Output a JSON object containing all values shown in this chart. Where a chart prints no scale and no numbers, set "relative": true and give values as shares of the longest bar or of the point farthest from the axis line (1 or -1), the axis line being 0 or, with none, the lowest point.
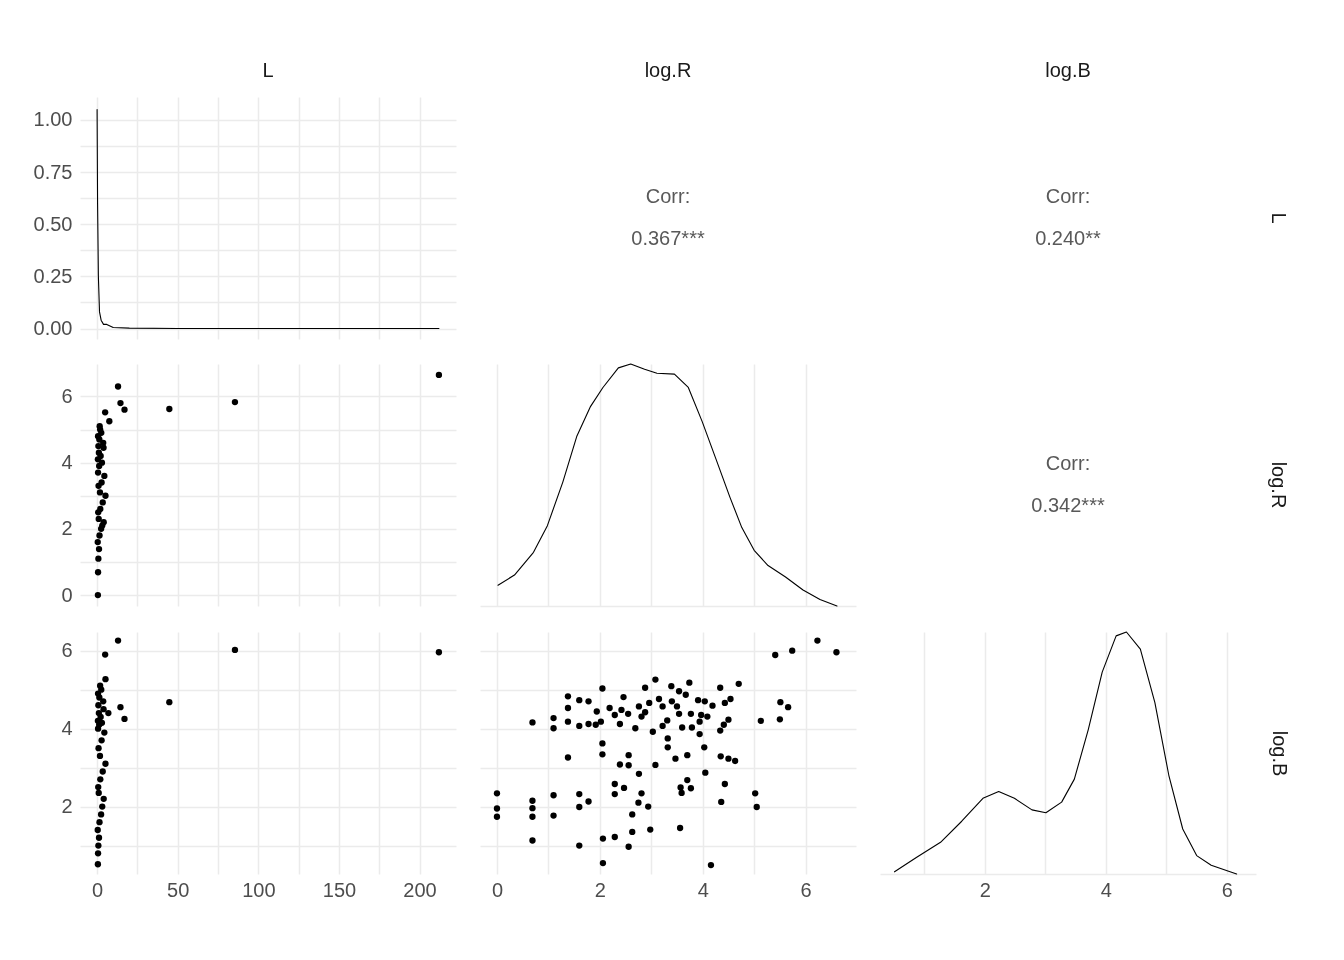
{
  "chart_data": [
    {
      "type": "line",
      "title": "L",
      "color": "#000000",
      "x": [
        0,
        0.3,
        0.8,
        1.5,
        2.5,
        4,
        6,
        10,
        20,
        50,
        100,
        150,
        212
      ],
      "values": [
        1.05,
        0.6,
        0.25,
        0.08,
        0.04,
        0.02,
        0.02,
        0.005,
        0.002,
        0,
        0,
        0,
        0
      ],
      "xlim": [
        -10.6,
        222.6
      ],
      "xticks": [
        0,
        {
          "value": 25,
          "label": null
        },
        50,
        {
          "value": 75,
          "label": null
        },
        100,
        {
          "value": 125,
          "label": null
        },
        150,
        {
          "value": 175,
          "label": null
        },
        200
      ],
      "ylim": [
        -0.05,
        1.11
      ],
      "yticks": [
        {
          "value": 0,
          "label": "0.00"
        },
        {
          "value": 0.125,
          "label": null
        },
        0.25,
        {
          "value": 0.375,
          "label": null
        },
        {
          "value": 0.5,
          "label": "0.50"
        },
        {
          "value": 0.625,
          "label": null
        },
        0.75,
        {
          "value": 0.875,
          "label": null
        },
        {
          "value": 1,
          "label": "1.00"
        }
      ],
      "grid": true,
      "tick_labels": "y"
    },
    {
      "type": "other",
      "title": "log.R",
      "annotations": [
        "Corr:",
        "0.367***"
      ]
    },
    {
      "type": "other",
      "title": "log.B",
      "y2label": "L",
      "annotations": [
        "Corr:",
        "0.240**"
      ]
    },
    {
      "type": "scatter",
      "color": "#000000",
      "marker": "circle",
      "x": [
        212,
        13,
        14.5,
        17,
        44.8,
        85.5,
        5,
        7.6,
        1.6,
        0.5,
        0.6,
        0.8,
        1.2,
        0.4,
        1.5,
        2.5,
        3.2,
        4.1,
        1.0,
        0.7,
        2.0,
        3.5,
        5.2,
        1.8,
        0.9,
        2.8,
        4.5,
        0.6,
        1.3,
        3.0,
        0.5,
        2.2,
        1.1,
        4.0,
        0.8,
        3.8,
        1.4,
        0.6,
        2.6,
        1.9
      ],
      "values": [
        6.65,
        6.3,
        5.8,
        5.6,
        5.62,
        5.83,
        5.52,
        5.25,
        5.1,
        0,
        0.69,
        1.1,
        1.39,
        1.6,
        1.8,
        2.0,
        2.1,
        2.2,
        2.3,
        2.5,
        2.6,
        2.8,
        3.0,
        3.1,
        3.3,
        3.4,
        3.6,
        3.7,
        3.9,
        4.0,
        4.1,
        4.2,
        4.3,
        4.45,
        4.5,
        4.6,
        4.7,
        4.8,
        4.9,
        5.0
      ],
      "xlim": [
        -10.6,
        222.6
      ],
      "xticks": [
        0,
        25,
        50,
        75,
        100,
        125,
        150,
        175,
        200
      ],
      "ylim": [
        -0.33,
        6.98
      ],
      "yticks": [
        0,
        {
          "value": 1,
          "label": null
        },
        2,
        {
          "value": 3,
          "label": null
        },
        4,
        {
          "value": 5,
          "label": null
        },
        6
      ],
      "grid": true,
      "tick_labels": "y"
    },
    {
      "type": "line",
      "relative": true,
      "color": "#000000",
      "x": [
        0.02,
        0.34,
        0.71,
        0.98,
        1.28,
        1.55,
        1.82,
        2.06,
        2.36,
        2.6,
        2.87,
        3.11,
        3.45,
        3.72,
        3.99,
        4.26,
        4.53,
        4.76,
        5.0,
        5.27,
        5.61,
        5.95,
        6.28,
        6.61
      ],
      "values": [
        0.086,
        0.128,
        0.222,
        0.332,
        0.512,
        0.7,
        0.825,
        0.903,
        0.984,
        1,
        0.978,
        0.962,
        0.958,
        0.903,
        0.762,
        0.606,
        0.449,
        0.324,
        0.23,
        0.167,
        0.12,
        0.066,
        0.027,
        0
      ],
      "xlim": [
        -0.33,
        6.98
      ],
      "xticks": [
        0,
        1,
        2,
        3,
        4,
        5,
        6
      ],
      "grid": true,
      "tick_labels": false
    },
    {
      "type": "other",
      "y2label": "log.R",
      "annotations": [
        "Corr:",
        "0.342***"
      ]
    },
    {
      "type": "scatter",
      "color": "#000000",
      "marker": "circle",
      "x": [
        212,
        13,
        85.5,
        5,
        44.8,
        14.5,
        17,
        5.2,
        7,
        0.5,
        0.6,
        0.8,
        1.2,
        0.4,
        1.5,
        2.5,
        3.2,
        4.1,
        1.0,
        0.7,
        2.0,
        3.5,
        5.2,
        1.8,
        0.9,
        2.8,
        4.5,
        0.6,
        1.3,
        3.0,
        0.5,
        2.2,
        1.1,
        4.0,
        0.8,
        3.8,
        1.4,
        0.6,
        2.6,
        1.9
      ],
      "values": [
        5.96,
        6.26,
        6.02,
        5.9,
        4.68,
        4.55,
        4.25,
        5.27,
        4.4,
        0.52,
        0.8,
        1.0,
        1.2,
        1.4,
        1.6,
        1.8,
        2.0,
        2.2,
        2.35,
        2.5,
        2.7,
        2.9,
        3.1,
        3.3,
        3.5,
        3.7,
        3.9,
        4.0,
        4.1,
        4.15,
        4.2,
        4.3,
        4.4,
        4.5,
        4.6,
        4.7,
        4.8,
        4.9,
        5.0,
        5.1
      ],
      "xlim": [
        -10.6,
        222.6
      ],
      "xticks": [
        0,
        {
          "value": 25,
          "label": null
        },
        50,
        {
          "value": 75,
          "label": null
        },
        100,
        {
          "value": 125,
          "label": null
        },
        150,
        {
          "value": 175,
          "label": null
        },
        200
      ],
      "ylim": [
        0.27,
        6.48
      ],
      "yticks": [
        {
          "value": 1,
          "label": null
        },
        2,
        {
          "value": 3,
          "label": null
        },
        4,
        {
          "value": 5,
          "label": null
        },
        6
      ],
      "grid": true
    },
    {
      "type": "scatter",
      "color": "#000000",
      "marker": "circle",
      "x": [
        6.23,
        6.6,
        5.74,
        5.41,
        5.51,
        5.66,
        5.5,
        5.13,
        4.7,
        4.34,
        4.54,
        4.43,
        4.5,
        4.41,
        4.34,
        3.74,
        3.39,
        3.54,
        3.67,
        3.08,
        2.88,
        3.15,
        3.22,
        3.4,
        3.5,
        3.91,
        4.04,
        4.19,
        3.54,
        3.77,
        3.97,
        4.09,
        3.94,
        3.31,
        3.22,
        3.03,
        3.6,
        3.79,
        3.94,
        2.88,
        2.96,
        2.76,
        2.81,
        2.69,
        2.55,
        2.42,
        2.46,
        2.19,
        2.29,
        2.39,
        2.05,
        1.94,
        2.02,
        1.92,
        1.78,
        1.78,
        1.6,
        1.6,
        1.38,
        1.38,
        1.38,
        1.1,
        1.1,
        0.69,
        2.05,
        2.05,
        1.38,
        3.32,
        3.32,
        4.03,
        3.47,
        3.7,
        4.35,
        4.5,
        4.63,
        2.56,
        2.56,
        2.39,
        3.08,
        2.76,
        4.05,
        3.7,
        3.57,
        3.77,
        3.59,
        4.43,
        4.36,
        5.02,
        5.05,
        2.29,
        2.47,
        2.29,
        2.81,
        2.75,
        2.94,
        1.78,
        1.6,
        1.6,
        1.1,
        1.1,
        0.69,
        0.69,
        0.69,
        0,
        0,
        0,
        2.63,
        2.63,
        2.98,
        3.56,
        2.29,
        2.06,
        2.56,
        1.6,
        0.69,
        2.06,
        4.16
      ],
      "values": [
        6.26,
        5.96,
        6.0,
        5.89,
        4.68,
        4.55,
        4.24,
        4.2,
        5.15,
        5.05,
        4.76,
        4.66,
        4.23,
        4.1,
        3.95,
        5.18,
        5.09,
        4.96,
        4.87,
        5.26,
        5.05,
        4.76,
        4.57,
        4.7,
        4.57,
        4.73,
        4.7,
        4.59,
        4.38,
        4.38,
        4.35,
        4.31,
        4.18,
        4.21,
        4.07,
        3.92,
        4.03,
        4.03,
        3.86,
        4.42,
        4.66,
        4.57,
        4.31,
        4.01,
        4.38,
        4.48,
        4.81,
        4.53,
        4.35,
        4.12,
        5.03,
        4.44,
        4.18,
        4.1,
        4.12,
        4.7,
        4.73,
        4.07,
        4.83,
        4.53,
        4.18,
        4.27,
        4.01,
        4.16,
        3.62,
        3.34,
        3.26,
        3.75,
        3.52,
        3.52,
        3.23,
        3.32,
        3.29,
        3.23,
        3.17,
        3.32,
        3.06,
        3.08,
        3.07,
        2.84,
        2.87,
        2.68,
        2.49,
        2.47,
        2.35,
        2.58,
        2.12,
        2.34,
        1.99,
        2.58,
        2.48,
        2.32,
        2.34,
        2.1,
        2.0,
        2.13,
        2.32,
        1.99,
        2.29,
        1.77,
        2.15,
        1.96,
        1.74,
        2.34,
        1.95,
        1.74,
        1.8,
        1.35,
        1.41,
        1.45,
        1.22,
        1.18,
        0.97,
        1.0,
        1.13,
        0.55,
        0.5
      ],
      "xlim": [
        -0.33,
        6.98
      ],
      "xticks": [
        0,
        {
          "value": 1,
          "label": null
        },
        2,
        {
          "value": 3,
          "label": null
        },
        4,
        {
          "value": 5,
          "label": null
        },
        6
      ],
      "ylim": [
        0.27,
        6.48
      ],
      "yticks": [
        1,
        2,
        3,
        4,
        5,
        6
      ],
      "grid": true,
      "tick_labels": "x"
    },
    {
      "type": "line",
      "relative": true,
      "y2label": "log.B",
      "color": "#000000",
      "x": [
        0.51,
        0.87,
        1.27,
        1.62,
        1.97,
        2.23,
        2.49,
        2.78,
        3.01,
        3.27,
        3.48,
        3.71,
        3.94,
        4.17,
        4.34,
        4.57,
        4.81,
        5.04,
        5.27,
        5.5,
        5.74,
        6.16
      ],
      "values": [
        0.009,
        0.068,
        0.131,
        0.218,
        0.313,
        0.341,
        0.313,
        0.265,
        0.253,
        0.297,
        0.392,
        0.597,
        0.834,
        0.984,
        1,
        0.929,
        0.708,
        0.408,
        0.186,
        0.076,
        0.036,
        0
      ],
      "xlim": [
        0.27,
        6.48
      ],
      "xticks": [
        {
          "value": 1,
          "label": null
        },
        2,
        {
          "value": 3,
          "label": null
        },
        4,
        {
          "value": 5,
          "label": null
        },
        6
      ],
      "grid": true,
      "tick_labels": "x"
    }
  ]
}
